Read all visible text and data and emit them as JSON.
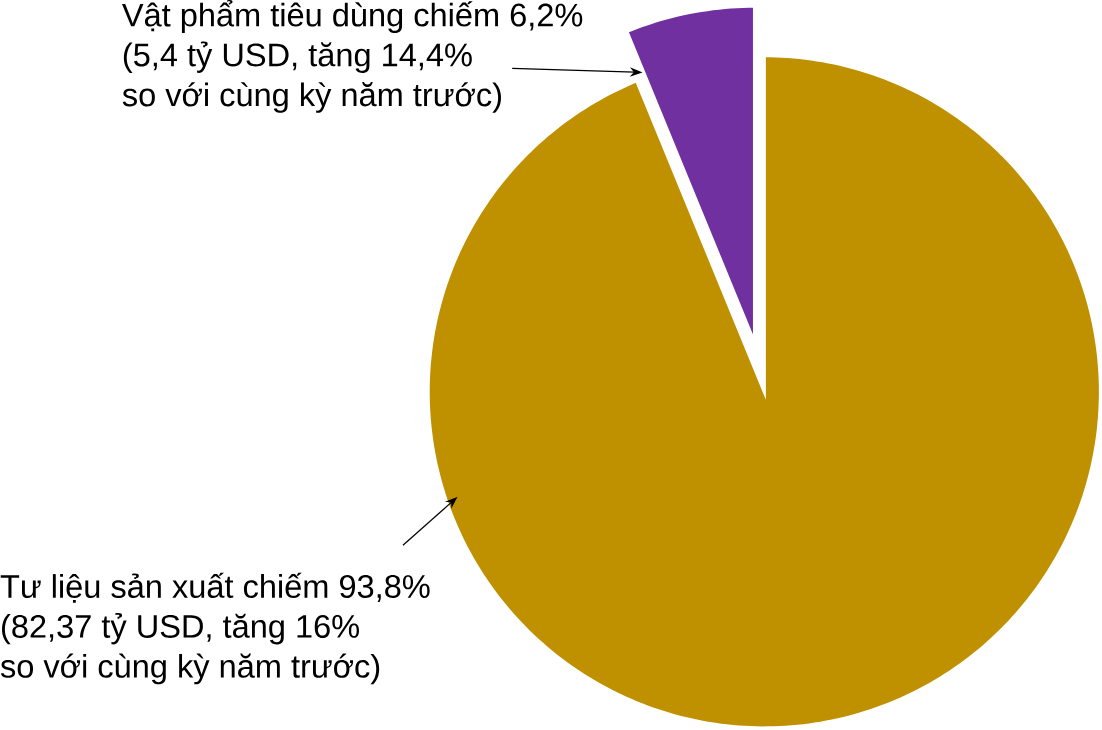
{
  "chart_data": {
    "type": "pie",
    "categories": [
      "Vật phẩm tiêu dùng chiếm 6,2%",
      "Tư liệu sản xuất chiếm 93,8%"
    ],
    "values": [
      6.2,
      93.8
    ],
    "colors": [
      "#7030a0",
      "#bf9000"
    ],
    "annotations": [
      "(5,4 tỷ USD, tăng 14,4%",
      "so với cùng kỳ năm trước)",
      "(82,37 tỷ USD, tăng 16%",
      "so với cùng kỳ năm trước)"
    ]
  }
}
